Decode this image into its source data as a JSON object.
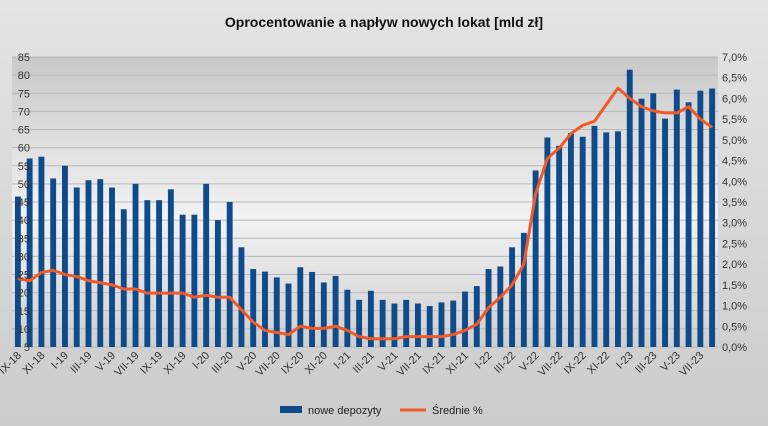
{
  "chart_data": {
    "type": "bar",
    "title": "Oprocentowanie a napływ nowych lokat  [mld zł]",
    "categories": [
      "IX-18",
      "X-18",
      "XI-18",
      "XII-18",
      "I-19",
      "II-19",
      "III-19",
      "IV-19",
      "V-19",
      "VI-19",
      "VII-19",
      "VIII-19",
      "IX-19",
      "X-19",
      "XI-19",
      "XII-19",
      "I-20",
      "II-20",
      "III-20",
      "IV-20",
      "V-20",
      "VI-20",
      "VII-20",
      "VIII-20",
      "IX-20",
      "X-20",
      "XI-20",
      "XII-20",
      "I-21",
      "II-21",
      "III-21",
      "IV-21",
      "V-21",
      "VI-21",
      "VII-21",
      "VIII-21",
      "IX-21",
      "X-21",
      "XI-21",
      "XII-21",
      "I-22",
      "II-22",
      "III-22",
      "IV-22",
      "V-22",
      "VI-22",
      "VII-22",
      "VIII-22",
      "IX-22",
      "X-22",
      "XI-22",
      "XII-22",
      "I-23",
      "II-23",
      "III-23",
      "IV-23",
      "V-23",
      "VI-23",
      "VII-23",
      "VIII-23"
    ],
    "tick_labels": [
      "IX-18",
      "XI-18",
      "I-19",
      "III-19",
      "V-19",
      "VII-19",
      "IX-19",
      "XI-19",
      "I-20",
      "III-20",
      "V-20",
      "VII-20",
      "IX-20",
      "XI-20",
      "I-21",
      "III-21",
      "V-21",
      "VII-21",
      "IX-21",
      "XI-21",
      "I-22",
      "III-22",
      "V-22",
      "VII-22",
      "IX-22",
      "XI-22",
      "I-23",
      "III-23",
      "V-23",
      "VII-23"
    ],
    "series": [
      {
        "name": "nowe depozyty",
        "type": "bar",
        "axis": "left",
        "color": "#0f4a8a",
        "values": [
          46.5,
          57,
          57.5,
          51.5,
          55,
          49,
          51,
          51.3,
          49,
          43,
          50,
          45.5,
          45.5,
          48.5,
          41.5,
          41.5,
          50,
          40,
          45,
          32.5,
          26.5,
          25.8,
          24.2,
          22.5,
          27,
          25.7,
          22.8,
          24.6,
          20.8,
          18,
          20.5,
          18,
          17,
          18,
          17,
          16.3,
          17.3,
          17.8,
          20.3,
          21.8,
          26.5,
          27.2,
          32.5,
          36.5,
          53.7,
          62.8,
          60.5,
          64,
          63,
          66,
          64.2,
          64.5,
          81.5,
          73.5,
          75,
          68,
          76,
          72.5,
          75.7,
          76.3
        ]
      },
      {
        "name": "Średnie %",
        "type": "line",
        "axis": "right",
        "color": "#f05a28",
        "values": [
          1.65,
          1.6,
          1.8,
          1.85,
          1.75,
          1.7,
          1.6,
          1.55,
          1.5,
          1.4,
          1.4,
          1.3,
          1.3,
          1.3,
          1.3,
          1.2,
          1.25,
          1.2,
          1.2,
          0.9,
          0.6,
          0.4,
          0.35,
          0.3,
          0.5,
          0.45,
          0.45,
          0.5,
          0.4,
          0.25,
          0.2,
          0.2,
          0.2,
          0.25,
          0.25,
          0.25,
          0.25,
          0.3,
          0.4,
          0.55,
          0.95,
          1.2,
          1.5,
          2.0,
          3.7,
          4.55,
          4.8,
          5.15,
          5.35,
          5.45,
          5.85,
          6.25,
          6.0,
          5.8,
          5.7,
          5.65,
          5.65,
          5.8,
          5.5,
          5.3
        ]
      }
    ],
    "left_axis": {
      "ylim": [
        5,
        85
      ],
      "ticks": [
        "5",
        "10",
        "15",
        "20",
        "25",
        "30",
        "35",
        "40",
        "45",
        "50",
        "55",
        "60",
        "65",
        "70",
        "75",
        "80",
        "85"
      ]
    },
    "right_axis": {
      "ylim": [
        0,
        7
      ],
      "ticks": [
        "0,0%",
        "0,5%",
        "1,0%",
        "1,5%",
        "2,0%",
        "2,5%",
        "3,0%",
        "3,5%",
        "4,0%",
        "4,5%",
        "5,0%",
        "5,5%",
        "6,0%",
        "6,5%",
        "7,0%"
      ]
    },
    "grid": true,
    "legend": {
      "placement": "bottom",
      "entries": [
        "nowe depozyty",
        "Średnie %"
      ]
    }
  }
}
